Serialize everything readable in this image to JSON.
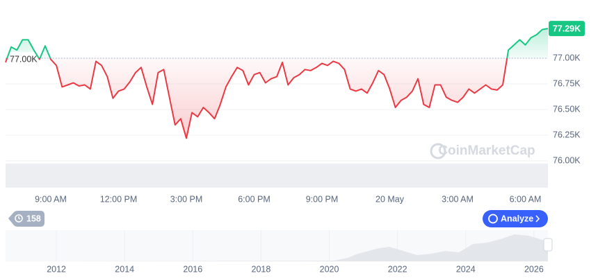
{
  "chart_data": {
    "type": "line",
    "x": [
      7,
      7.25,
      7.5,
      7.75,
      8,
      8.25,
      8.5,
      8.75,
      9,
      9.25,
      9.5,
      9.75,
      10,
      10.25,
      10.5,
      10.75,
      11,
      11.25,
      11.5,
      11.75,
      12,
      12.25,
      12.5,
      12.75,
      13,
      13.25,
      13.5,
      13.75,
      14,
      14.25,
      14.5,
      14.75,
      15,
      15.25,
      15.5,
      15.75,
      16,
      16.25,
      16.5,
      16.75,
      17,
      17.25,
      17.5,
      17.75,
      18,
      18.25,
      18.5,
      18.75,
      19,
      19.25,
      19.5,
      19.75,
      20,
      20.25,
      20.5,
      20.75,
      21,
      21.25,
      21.5,
      21.75,
      22,
      22.25,
      22.5,
      22.75,
      23,
      23.25,
      23.5,
      23.75,
      24,
      24.25,
      24.5,
      24.75,
      25,
      25.25,
      25.5,
      25.75,
      26,
      26.25,
      26.5,
      26.75,
      27,
      27.25,
      27.5,
      27.75,
      28,
      28.25,
      28.5,
      28.75,
      29,
      29.25,
      29.5,
      29.75,
      30,
      30.25,
      30.5,
      30.75,
      31
    ],
    "values": [
      76.96,
      77.11,
      77.08,
      77.18,
      77.18,
      77.08,
      76.99,
      77.12,
      76.99,
      76.93,
      76.72,
      76.74,
      76.76,
      76.73,
      76.74,
      76.7,
      76.97,
      76.93,
      76.82,
      76.61,
      76.68,
      76.7,
      76.77,
      76.86,
      76.91,
      76.72,
      76.55,
      76.86,
      76.89,
      76.62,
      76.35,
      76.41,
      76.22,
      76.47,
      76.43,
      76.52,
      76.47,
      76.41,
      76.55,
      76.72,
      76.82,
      76.91,
      76.88,
      76.74,
      76.84,
      76.86,
      76.76,
      76.8,
      76.82,
      76.96,
      76.74,
      76.81,
      76.84,
      76.89,
      76.88,
      76.91,
      76.95,
      76.93,
      76.97,
      76.95,
      76.89,
      76.7,
      76.68,
      76.7,
      76.66,
      76.76,
      76.88,
      76.84,
      76.7,
      76.52,
      76.59,
      76.62,
      76.68,
      76.8,
      76.55,
      76.52,
      76.74,
      76.74,
      76.62,
      76.59,
      76.57,
      76.62,
      76.7,
      76.66,
      76.7,
      76.74,
      76.7,
      76.69,
      76.74,
      77.08,
      77.13,
      77.18,
      77.13,
      77.2,
      77.23,
      77.28,
      77.29
    ],
    "color_above": "#16c784",
    "color_below": "#ea3943",
    "baseline": {
      "value": 77.0,
      "label": "77.00K"
    },
    "last_price": {
      "value": 77.29,
      "label": "77.29K"
    },
    "xlim": [
      7,
      31
    ],
    "xticks": [
      {
        "value": 9,
        "label": "9:00 AM"
      },
      {
        "value": 12,
        "label": "12:00 PM"
      },
      {
        "value": 15,
        "label": "3:00 PM"
      },
      {
        "value": 18,
        "label": "6:00 PM"
      },
      {
        "value": 21,
        "label": "9:00 PM"
      },
      {
        "value": 24,
        "label": "20 May"
      },
      {
        "value": 27,
        "label": "3:00 AM"
      },
      {
        "value": 30,
        "label": "6:00 AM"
      }
    ],
    "ylim": [
      75.75,
      77.5
    ],
    "yticks": [
      {
        "value": 77.0,
        "label": "77.00K"
      },
      {
        "value": 76.75,
        "label": "76.75K"
      },
      {
        "value": 76.5,
        "label": "76.50K"
      },
      {
        "value": 76.25,
        "label": "76.25K"
      },
      {
        "value": 76.0,
        "label": "76.00K"
      }
    ],
    "grid": true,
    "watermark": "CoinMarketCap",
    "badge": 158,
    "button": "Analyze",
    "navigator": {
      "xlim": [
        2010.51,
        2026.41
      ],
      "xticks": [
        2012,
        2014,
        2016,
        2018,
        2020,
        2022,
        2024,
        2026
      ]
    }
  }
}
